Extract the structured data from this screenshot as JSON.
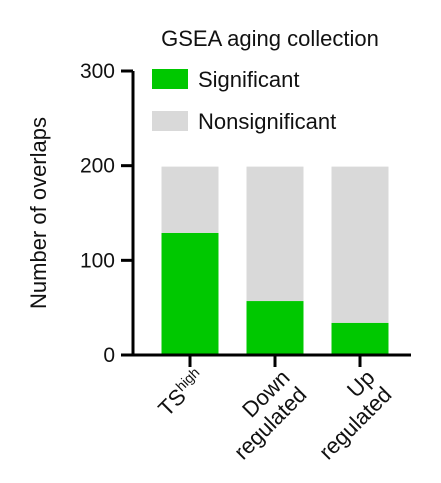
{
  "chart_data": {
    "type": "bar",
    "stacked": true,
    "title": "GSEA aging collection",
    "ylabel": "Number of overlaps",
    "xlabel": "",
    "ylim": [
      0,
      300
    ],
    "yticks": [
      "0",
      "100",
      "200",
      "300"
    ],
    "categories": [
      {
        "main": "TS",
        "superscript": "high"
      },
      {
        "lines": [
          "Down",
          "regulated"
        ]
      },
      {
        "lines": [
          "Up",
          "regulated"
        ]
      }
    ],
    "series": [
      {
        "name": "Significant",
        "color": "#00c800",
        "values": [
          129,
          57,
          34
        ]
      },
      {
        "name": "Nonsignificant",
        "color": "#d9d9d9",
        "values": [
          70,
          142,
          165
        ]
      }
    ],
    "legend_position": "top-right",
    "grid": false
  }
}
